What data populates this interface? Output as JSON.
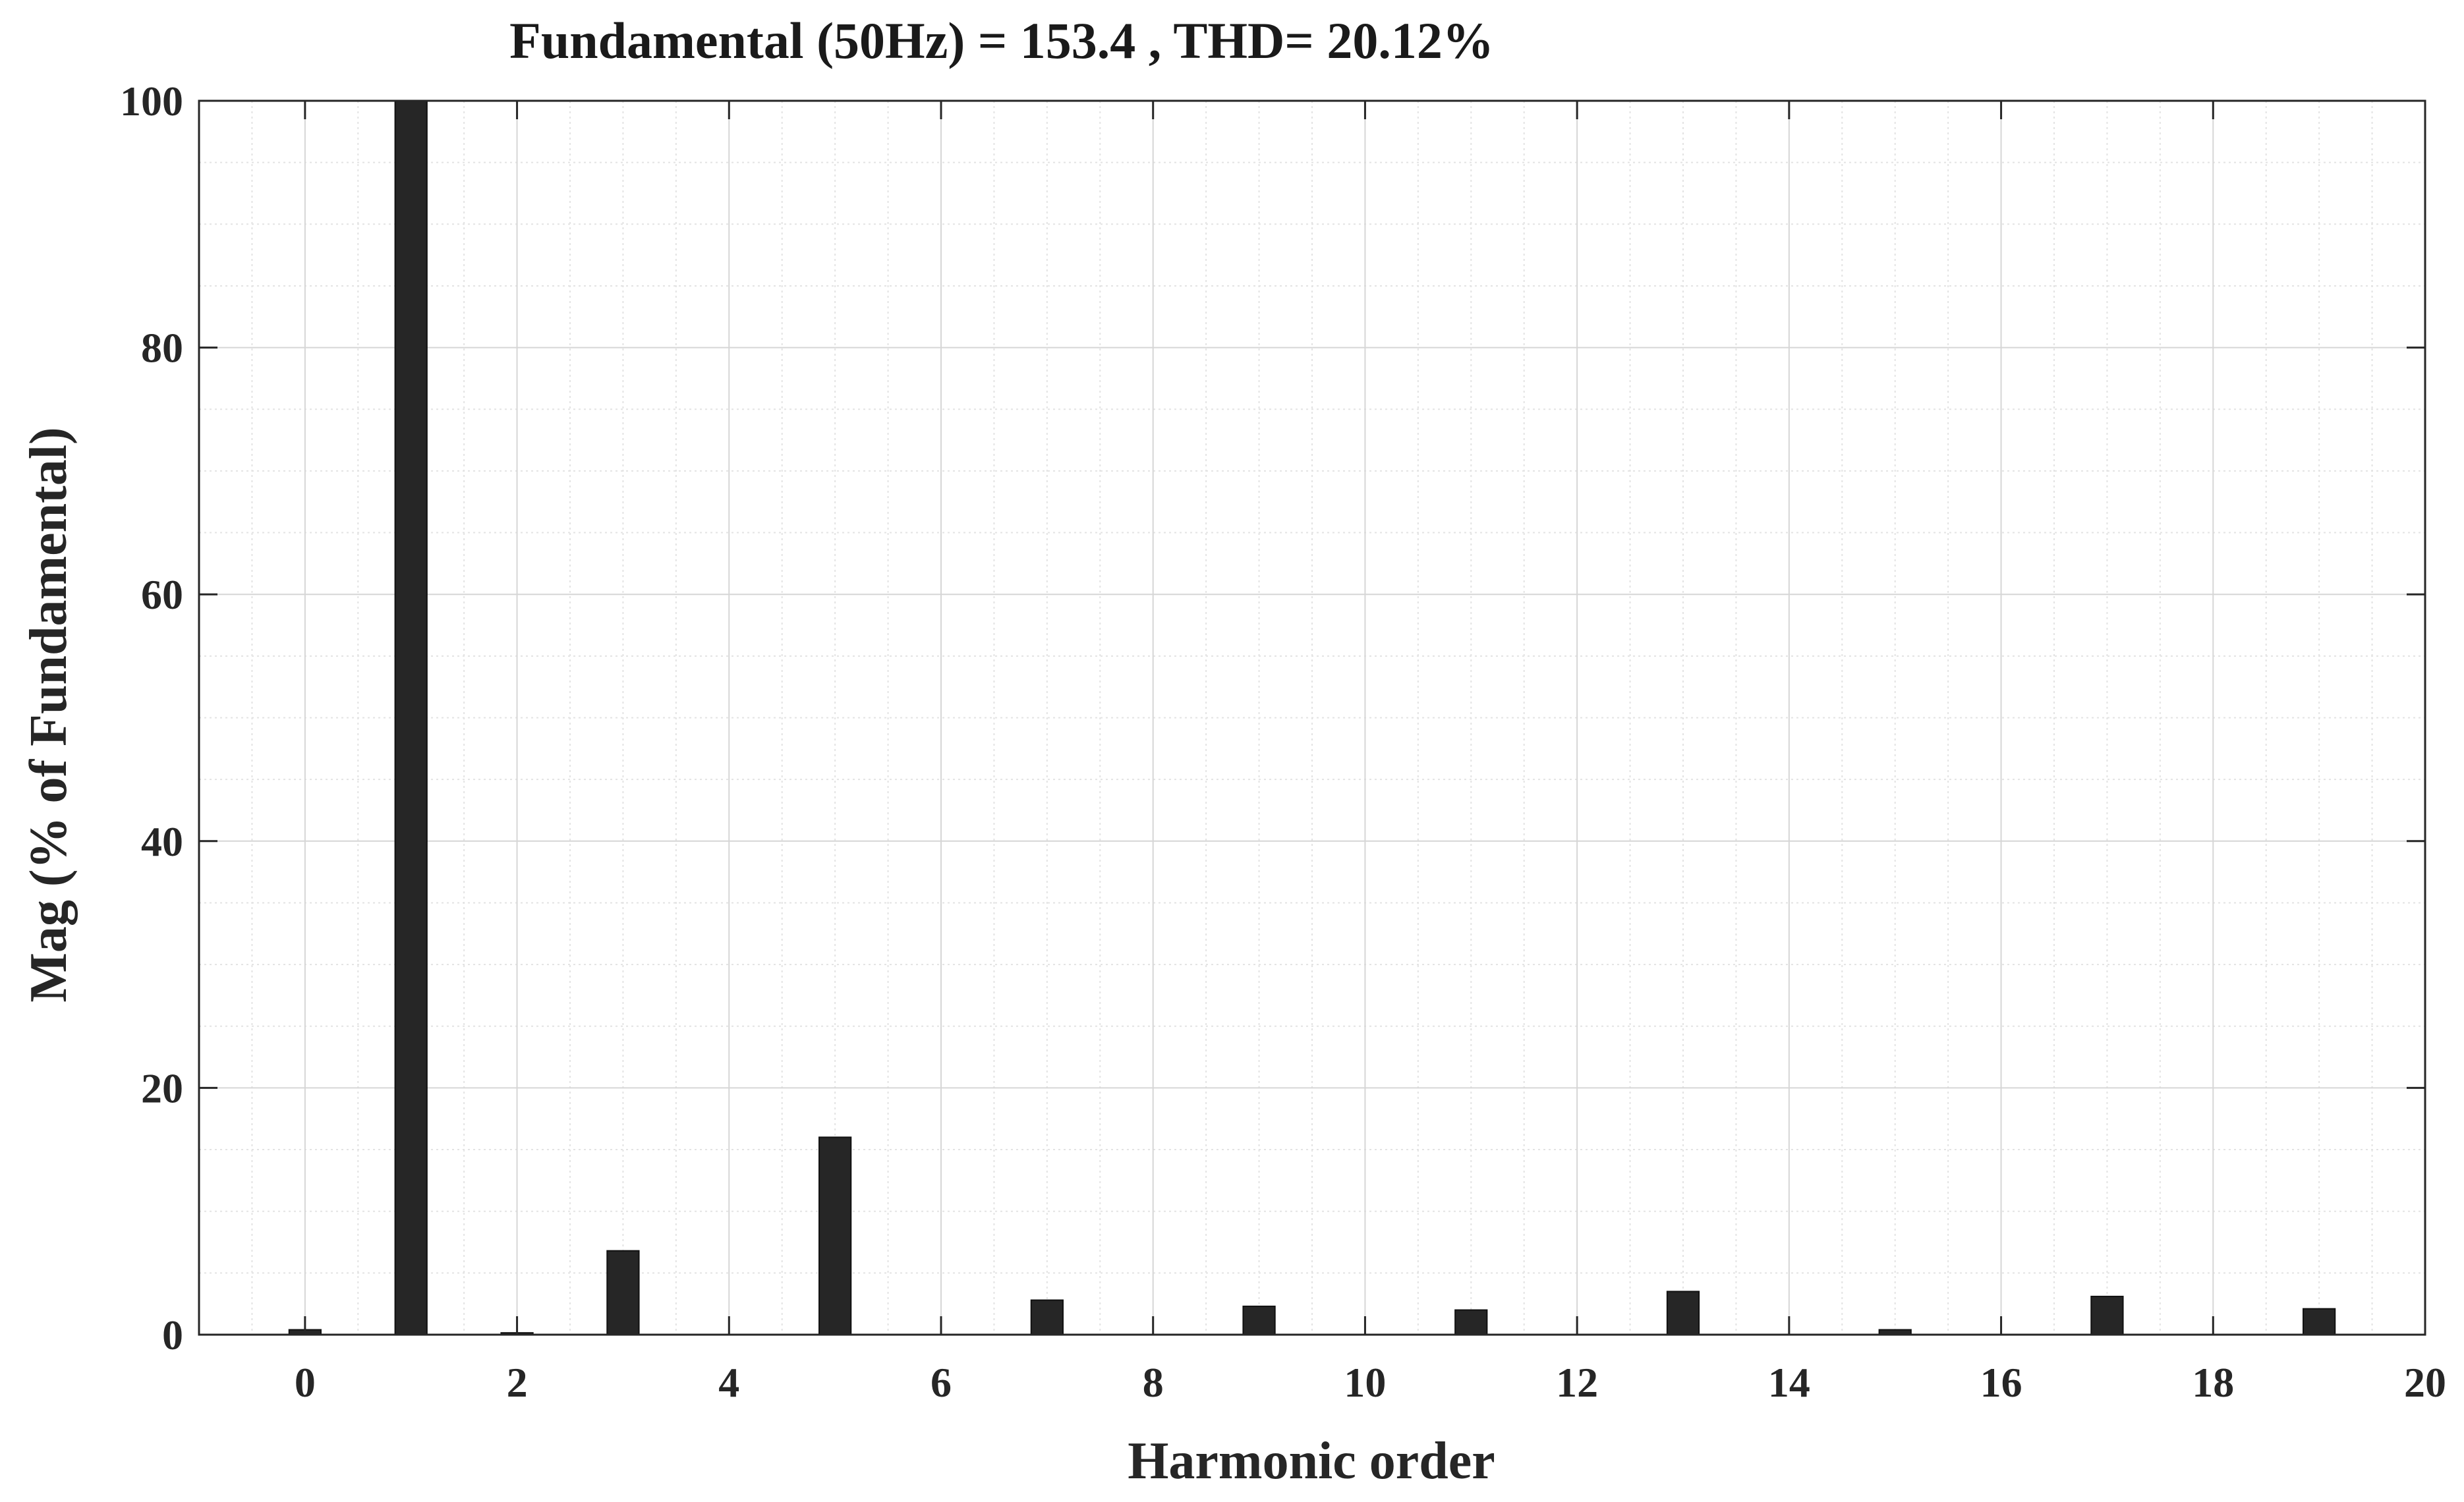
{
  "chart_data": {
    "type": "bar",
    "title": "Fundamental (50Hz) = 153.4 , THD= 20.12%",
    "xlabel": "Harmonic order",
    "ylabel": "Mag (% of Fundamental)",
    "xlim": [
      -1,
      20
    ],
    "ylim": [
      0,
      100
    ],
    "xticks": [
      "0",
      "2",
      "4",
      "6",
      "8",
      "10",
      "12",
      "14",
      "16",
      "18",
      "20"
    ],
    "yticks": [
      "0",
      "20",
      "40",
      "60",
      "80",
      "100"
    ],
    "grid": true,
    "minor_grid": true,
    "bar_color": "#262626",
    "x": [
      0,
      1,
      2,
      3,
      5,
      7,
      9,
      11,
      13,
      15,
      17,
      19
    ],
    "values": [
      0.4,
      100,
      0.15,
      6.8,
      16.0,
      2.8,
      2.3,
      2.0,
      3.5,
      0.4,
      3.1,
      2.1
    ]
  }
}
